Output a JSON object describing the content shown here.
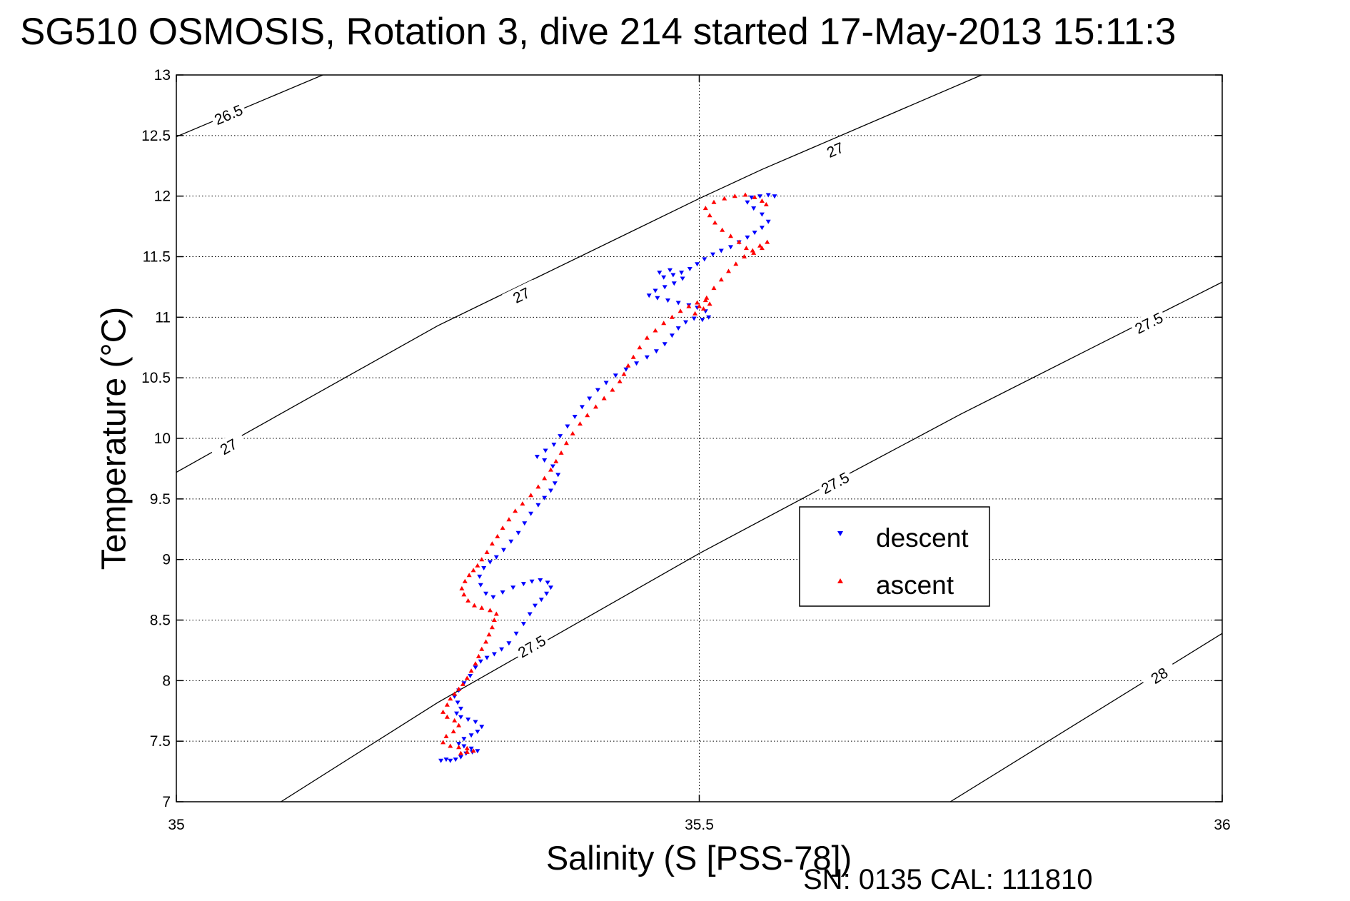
{
  "chart_data": {
    "type": "scatter",
    "title": "SG510 OSMOSIS, Rotation 3, dive 214 started 17-May-2013 15:11:3",
    "xlabel": "Salinity (S [PSS-78])",
    "ylabel": "Temperature (°C)",
    "footer": "SN: 0135  CAL: 111810",
    "xlim": [
      35,
      36
    ],
    "ylim": [
      7,
      13
    ],
    "xticks": [
      35,
      35.5,
      36
    ],
    "xtick_labels": [
      "35",
      "35.5",
      "36"
    ],
    "yticks": [
      7,
      7.5,
      8,
      8.5,
      9,
      9.5,
      10,
      10.5,
      11,
      11.5,
      12,
      12.5,
      13
    ],
    "ytick_labels": [
      "7",
      "7.5",
      "8",
      "8.5",
      "9",
      "9.5",
      "10",
      "10.5",
      "11",
      "11.5",
      "12",
      "12.5",
      "13"
    ],
    "grid": true,
    "legend_position": "right",
    "contours": [
      {
        "level": "26.5",
        "points": [
          [
            35,
            12.49
          ],
          [
            35.14,
            13
          ]
        ],
        "labels": [
          {
            "x": 35.05,
            "y": 12.67
          }
        ]
      },
      {
        "level": "27",
        "points": [
          [
            35,
            9.72
          ],
          [
            35.25,
            10.93
          ],
          [
            35.5,
            11.98
          ],
          [
            35.56,
            12.22
          ],
          [
            35.77,
            13
          ]
        ],
        "labels": [
          {
            "x": 35.05,
            "y": 9.93
          },
          {
            "x": 35.33,
            "y": 11.18
          },
          {
            "x": 35.63,
            "y": 12.38
          }
        ]
      },
      {
        "level": "27.5",
        "points": [
          [
            35.1,
            7
          ],
          [
            35.25,
            7.82
          ],
          [
            35.5,
            9.05
          ],
          [
            35.75,
            10.2
          ],
          [
            36,
            11.29
          ]
        ],
        "labels": [
          {
            "x": 35.34,
            "y": 8.28
          },
          {
            "x": 35.63,
            "y": 9.63
          },
          {
            "x": 35.93,
            "y": 10.95
          }
        ]
      },
      {
        "level": "28",
        "points": [
          [
            35.74,
            7
          ],
          [
            36,
            8.39
          ]
        ],
        "labels": [
          {
            "x": 35.94,
            "y": 8.04
          }
        ]
      }
    ],
    "series": [
      {
        "name": "descent",
        "color": "#0000ff",
        "marker": "triangle-down",
        "points": [
          [
            35.253,
            7.34
          ],
          [
            35.258,
            7.35
          ],
          [
            35.262,
            7.34
          ],
          [
            35.267,
            7.35
          ],
          [
            35.272,
            7.37
          ],
          [
            35.277,
            7.4
          ],
          [
            35.283,
            7.41
          ],
          [
            35.288,
            7.42
          ],
          [
            35.282,
            7.44
          ],
          [
            35.275,
            7.46
          ],
          [
            35.27,
            7.48
          ],
          [
            35.275,
            7.52
          ],
          [
            35.282,
            7.55
          ],
          [
            35.288,
            7.58
          ],
          [
            35.292,
            7.62
          ],
          [
            35.286,
            7.66
          ],
          [
            35.279,
            7.68
          ],
          [
            35.272,
            7.7
          ],
          [
            35.268,
            7.73
          ],
          [
            35.272,
            7.77
          ],
          [
            35.269,
            7.82
          ],
          [
            35.266,
            7.87
          ],
          [
            35.27,
            7.92
          ],
          [
            35.275,
            7.98
          ],
          [
            35.281,
            8.04
          ],
          [
            35.286,
            8.11
          ],
          [
            35.291,
            8.16
          ],
          [
            35.297,
            8.19
          ],
          [
            35.304,
            8.22
          ],
          [
            35.311,
            8.26
          ],
          [
            35.318,
            8.31
          ],
          [
            35.325,
            8.39
          ],
          [
            35.332,
            8.47
          ],
          [
            35.338,
            8.55
          ],
          [
            35.343,
            8.62
          ],
          [
            35.349,
            8.67
          ],
          [
            35.354,
            8.72
          ],
          [
            35.358,
            8.77
          ],
          [
            35.355,
            8.81
          ],
          [
            35.348,
            8.83
          ],
          [
            35.34,
            8.82
          ],
          [
            35.332,
            8.8
          ],
          [
            35.322,
            8.77
          ],
          [
            35.312,
            8.73
          ],
          [
            35.303,
            8.69
          ],
          [
            35.296,
            8.72
          ],
          [
            35.291,
            8.79
          ],
          [
            35.29,
            8.86
          ],
          [
            35.294,
            8.93
          ],
          [
            35.3,
            8.98
          ],
          [
            35.306,
            9.02
          ],
          [
            35.313,
            9.08
          ],
          [
            35.32,
            9.15
          ],
          [
            35.327,
            9.22
          ],
          [
            35.333,
            9.3
          ],
          [
            35.339,
            9.38
          ],
          [
            35.346,
            9.45
          ],
          [
            35.352,
            9.51
          ],
          [
            35.358,
            9.57
          ],
          [
            35.362,
            9.63
          ],
          [
            35.365,
            9.7
          ],
          [
            35.36,
            9.77
          ],
          [
            35.352,
            9.82
          ],
          [
            35.345,
            9.85
          ],
          [
            35.353,
            9.9
          ],
          [
            35.361,
            9.95
          ],
          [
            35.367,
            10.02
          ],
          [
            35.374,
            10.1
          ],
          [
            35.381,
            10.18
          ],
          [
            35.388,
            10.26
          ],
          [
            35.395,
            10.33
          ],
          [
            35.403,
            10.4
          ],
          [
            35.411,
            10.46
          ],
          [
            35.42,
            10.52
          ],
          [
            35.43,
            10.57
          ],
          [
            35.44,
            10.62
          ],
          [
            35.45,
            10.67
          ],
          [
            35.459,
            10.72
          ],
          [
            35.467,
            10.78
          ],
          [
            35.474,
            10.85
          ],
          [
            35.48,
            10.91
          ],
          [
            35.487,
            10.96
          ],
          [
            35.495,
            10.99
          ],
          [
            35.503,
            10.98
          ],
          [
            35.509,
            11.0
          ],
          [
            35.506,
            11.05
          ],
          [
            35.498,
            11.08
          ],
          [
            35.49,
            11.1
          ],
          [
            35.48,
            11.12
          ],
          [
            35.47,
            11.14
          ],
          [
            35.46,
            11.16
          ],
          [
            35.452,
            11.18
          ],
          [
            35.458,
            11.22
          ],
          [
            35.467,
            11.25
          ],
          [
            35.476,
            11.28
          ],
          [
            35.484,
            11.32
          ],
          [
            35.475,
            11.35
          ],
          [
            35.466,
            11.33
          ],
          [
            35.462,
            11.37
          ],
          [
            35.472,
            11.39
          ],
          [
            35.483,
            11.37
          ],
          [
            35.491,
            11.4
          ],
          [
            35.498,
            11.44
          ],
          [
            35.505,
            11.48
          ],
          [
            35.513,
            11.52
          ],
          [
            35.521,
            11.55
          ],
          [
            35.53,
            11.58
          ],
          [
            35.538,
            11.62
          ],
          [
            35.546,
            11.66
          ],
          [
            35.553,
            11.7
          ],
          [
            35.56,
            11.74
          ],
          [
            35.566,
            11.79
          ],
          [
            35.56,
            11.85
          ],
          [
            35.552,
            11.9
          ],
          [
            35.546,
            11.95
          ],
          [
            35.55,
            11.99
          ],
          [
            35.558,
            12.0
          ],
          [
            35.566,
            12.01
          ],
          [
            35.572,
            12.0
          ]
        ]
      },
      {
        "name": "ascent",
        "color": "#ff0000",
        "marker": "triangle-up",
        "points": [
          [
            35.272,
            7.4
          ],
          [
            35.278,
            7.41
          ],
          [
            35.284,
            7.42
          ],
          [
            35.278,
            7.44
          ],
          [
            35.27,
            7.45
          ],
          [
            35.262,
            7.46
          ],
          [
            35.255,
            7.49
          ],
          [
            35.258,
            7.54
          ],
          [
            35.265,
            7.58
          ],
          [
            35.27,
            7.63
          ],
          [
            35.266,
            7.67
          ],
          [
            35.259,
            7.7
          ],
          [
            35.255,
            7.74
          ],
          [
            35.259,
            7.8
          ],
          [
            35.262,
            7.85
          ],
          [
            35.266,
            7.89
          ],
          [
            35.27,
            7.93
          ],
          [
            35.274,
            7.97
          ],
          [
            35.278,
            8.02
          ],
          [
            35.282,
            8.08
          ],
          [
            35.286,
            8.14
          ],
          [
            35.289,
            8.2
          ],
          [
            35.292,
            8.26
          ],
          [
            35.296,
            8.32
          ],
          [
            35.299,
            8.38
          ],
          [
            35.302,
            8.44
          ],
          [
            35.304,
            8.5
          ],
          [
            35.306,
            8.55
          ],
          [
            35.3,
            8.58
          ],
          [
            35.292,
            8.6
          ],
          [
            35.285,
            8.62
          ],
          [
            35.279,
            8.66
          ],
          [
            35.275,
            8.71
          ],
          [
            35.273,
            8.76
          ],
          [
            35.276,
            8.82
          ],
          [
            35.28,
            8.87
          ],
          [
            35.284,
            8.91
          ],
          [
            35.288,
            8.95
          ],
          [
            35.292,
            9.0
          ],
          [
            35.297,
            9.06
          ],
          [
            35.302,
            9.13
          ],
          [
            35.307,
            9.19
          ],
          [
            35.312,
            9.26
          ],
          [
            35.318,
            9.33
          ],
          [
            35.324,
            9.4
          ],
          [
            35.331,
            9.46
          ],
          [
            35.339,
            9.53
          ],
          [
            35.346,
            9.6
          ],
          [
            35.352,
            9.67
          ],
          [
            35.358,
            9.74
          ],
          [
            35.363,
            9.81
          ],
          [
            35.368,
            9.88
          ],
          [
            35.373,
            9.96
          ],
          [
            35.379,
            10.04
          ],
          [
            35.386,
            10.12
          ],
          [
            35.393,
            10.19
          ],
          [
            35.401,
            10.26
          ],
          [
            35.409,
            10.33
          ],
          [
            35.417,
            10.4
          ],
          [
            35.424,
            10.47
          ],
          [
            35.428,
            10.53
          ],
          [
            35.432,
            10.6
          ],
          [
            35.437,
            10.67
          ],
          [
            35.443,
            10.75
          ],
          [
            35.45,
            10.83
          ],
          [
            35.458,
            10.89
          ],
          [
            35.466,
            10.95
          ],
          [
            35.474,
            11.0
          ],
          [
            35.482,
            11.05
          ],
          [
            35.49,
            11.09
          ],
          [
            35.498,
            11.12
          ],
          [
            35.506,
            11.14
          ],
          [
            35.51,
            11.11
          ],
          [
            35.504,
            11.07
          ],
          [
            35.496,
            11.03
          ],
          [
            35.5,
            11.09
          ],
          [
            35.507,
            11.16
          ],
          [
            35.514,
            11.24
          ],
          [
            35.521,
            11.31
          ],
          [
            35.528,
            11.38
          ],
          [
            35.535,
            11.44
          ],
          [
            35.543,
            11.5
          ],
          [
            35.551,
            11.55
          ],
          [
            35.558,
            11.59
          ],
          [
            35.565,
            11.62
          ],
          [
            35.56,
            11.57
          ],
          [
            35.552,
            11.53
          ],
          [
            35.545,
            11.57
          ],
          [
            35.538,
            11.62
          ],
          [
            35.53,
            11.67
          ],
          [
            35.522,
            11.72
          ],
          [
            35.515,
            11.78
          ],
          [
            35.51,
            11.84
          ],
          [
            35.506,
            11.9
          ],
          [
            35.514,
            11.95
          ],
          [
            35.524,
            11.98
          ],
          [
            35.534,
            12.0
          ],
          [
            35.544,
            12.01
          ],
          [
            35.553,
            11.99
          ],
          [
            35.56,
            11.96
          ],
          [
            35.564,
            11.93
          ]
        ]
      }
    ]
  }
}
